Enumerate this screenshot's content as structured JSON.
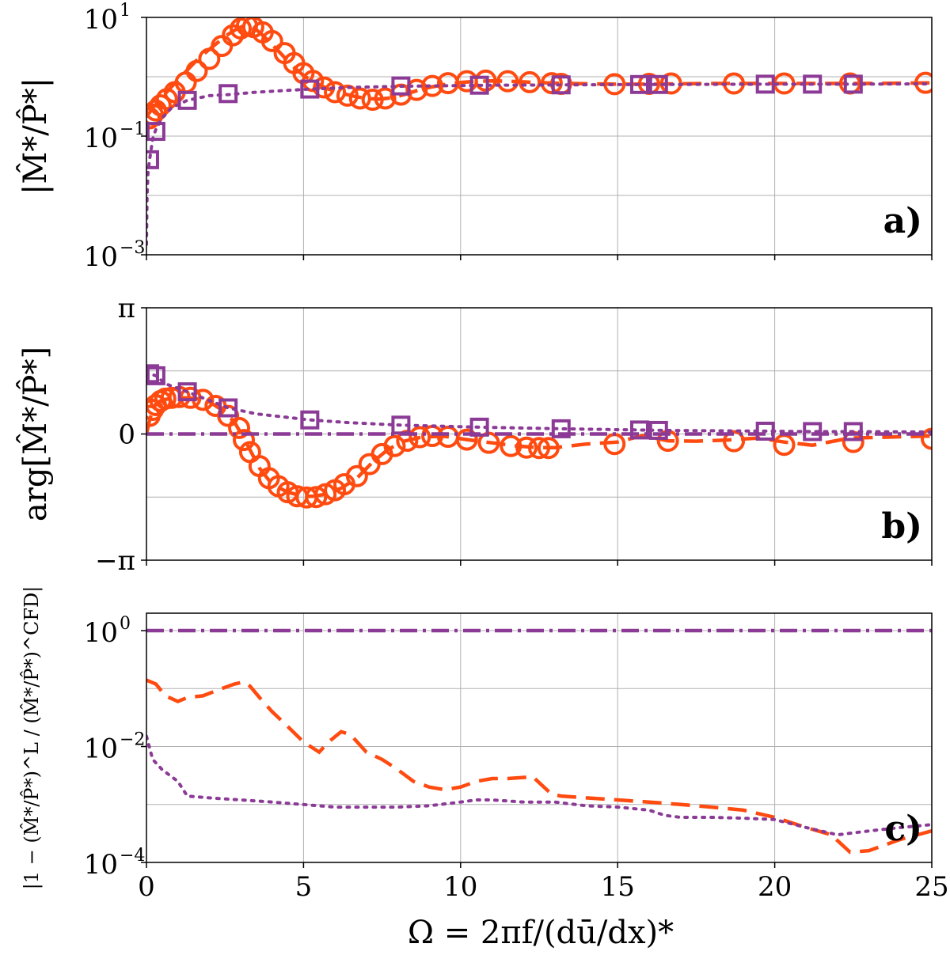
{
  "colors": {
    "orange": "#ff4a10",
    "purple": "#8b3a96"
  },
  "xaxis": {
    "label": "Ω = 2πf/(dū/dx)*",
    "ticks": [
      0,
      5,
      10,
      15,
      20,
      25
    ],
    "tick_labels": [
      "0",
      "5",
      "10",
      "15",
      "20",
      "25"
    ],
    "lim": [
      0,
      25
    ]
  },
  "chart_data": [
    {
      "type": "line",
      "panel": "a)",
      "ylabel": "|M̂*/P̂*|",
      "yscale": "log",
      "ylim": [
        0.001,
        10
      ],
      "ytick_labels": [
        {
          "base": "10",
          "exp": "1"
        },
        {
          "base": "10",
          "exp": "−1"
        },
        {
          "base": "10",
          "exp": "−3"
        }
      ],
      "yticks": [
        10,
        0.1,
        0.001
      ],
      "series": [
        {
          "name": "orange-dashed-circles",
          "color": "orange",
          "dash": "long",
          "marker": "circle",
          "x": [
            0,
            0.1,
            0.2,
            0.3,
            0.4,
            0.5,
            0.6,
            0.8,
            1.0,
            1.3,
            1.6,
            2.0,
            2.3,
            2.6,
            2.9,
            3.1,
            3.3,
            3.5,
            3.7,
            4.0,
            4.3,
            4.6,
            5.0,
            5.4,
            5.8,
            6.2,
            6.6,
            7.0,
            7.4,
            7.8,
            8.2,
            8.6,
            9.0,
            9.5,
            10.0,
            10.5,
            11.0,
            11.5,
            12.0,
            12.5,
            13.0,
            14.0,
            15.0,
            16.0,
            17.0,
            18.0,
            19.0,
            20.0,
            21.0,
            22.0,
            23.0,
            24.0,
            25.0
          ],
          "y": [
            0.22,
            0.25,
            0.3,
            0.34,
            0.39,
            0.45,
            0.52,
            0.68,
            0.88,
            1.3,
            1.9,
            2.9,
            3.9,
            5.2,
            6.5,
            7.2,
            7.0,
            6.2,
            5.0,
            3.5,
            2.4,
            1.6,
            1.05,
            0.78,
            0.62,
            0.53,
            0.47,
            0.43,
            0.42,
            0.44,
            0.5,
            0.58,
            0.66,
            0.74,
            0.8,
            0.84,
            0.85,
            0.84,
            0.82,
            0.8,
            0.78,
            0.76,
            0.75,
            0.75,
            0.76,
            0.77,
            0.77,
            0.77,
            0.77,
            0.77,
            0.77,
            0.78,
            0.79
          ],
          "marker_x": [
            0.1,
            0.2,
            0.3,
            0.45,
            0.65,
            0.9,
            1.25,
            1.6,
            2.0,
            2.4,
            2.75,
            3.0,
            3.2,
            3.4,
            3.7,
            4.0,
            4.4,
            4.7,
            5.0,
            5.3,
            5.65,
            6.0,
            6.4,
            6.8,
            7.2,
            7.6,
            8.1,
            8.6,
            9.1,
            9.6,
            10.2,
            10.8,
            11.5,
            12.2,
            12.9,
            13.2,
            14.9,
            16.0,
            16.7,
            18.7,
            20.3,
            22.4,
            24.8
          ],
          "marker_y": [
            0.2,
            0.23,
            0.27,
            0.33,
            0.42,
            0.55,
            0.8,
            1.25,
            2.0,
            3.3,
            5.0,
            6.5,
            7.3,
            6.9,
            5.6,
            4.0,
            2.5,
            1.7,
            1.15,
            0.85,
            0.66,
            0.55,
            0.48,
            0.43,
            0.41,
            0.43,
            0.5,
            0.6,
            0.7,
            0.78,
            0.84,
            0.86,
            0.84,
            0.81,
            0.78,
            0.76,
            0.75,
            0.76,
            0.77,
            0.77,
            0.77,
            0.77,
            0.79
          ]
        },
        {
          "name": "purple-dotted-squares",
          "color": "purple",
          "dash": "dotted",
          "marker": "square",
          "x": [
            0,
            0.02,
            0.05,
            0.1,
            0.2,
            0.3,
            0.5,
            0.8,
            1.3,
            2.0,
            2.6,
            3.5,
            5.2,
            6.5,
            8.0,
            10.0,
            11.0,
            13.2,
            15.7,
            16.3,
            19.7,
            21.2,
            22.5,
            25.0
          ],
          "y": [
            0.0015,
            0.01,
            0.025,
            0.04,
            0.09,
            0.13,
            0.2,
            0.3,
            0.4,
            0.48,
            0.5,
            0.55,
            0.62,
            0.66,
            0.69,
            0.71,
            0.72,
            0.73,
            0.74,
            0.74,
            0.75,
            0.75,
            0.75,
            0.76
          ],
          "marker_x": [
            0.1,
            0.3,
            1.3,
            2.6,
            5.2,
            8.1,
            10.6,
            13.2,
            15.7,
            16.3,
            19.7,
            21.2,
            22.5
          ],
          "marker_y": [
            0.04,
            0.12,
            0.4,
            0.52,
            0.62,
            0.7,
            0.72,
            0.73,
            0.74,
            0.74,
            0.75,
            0.75,
            0.75
          ]
        }
      ]
    },
    {
      "type": "line",
      "panel": "b)",
      "ylabel": "arg[M̂*/P̂*]",
      "ylim": [
        -3.14159,
        3.14159
      ],
      "ytick_labels": [
        "π",
        "0",
        "−π"
      ],
      "yticks": [
        3.14159,
        0,
        -3.14159
      ],
      "grid_y": [
        3.14159,
        1.5708,
        0,
        -1.5708,
        -3.14159
      ],
      "series": [
        {
          "name": "orange-dashed-circles",
          "color": "orange",
          "dash": "long",
          "marker": "circle",
          "x": [
            0,
            0.1,
            0.2,
            0.3,
            0.5,
            0.8,
            1.2,
            1.6,
            2.0,
            2.4,
            2.8,
            3.2,
            3.6,
            4.0,
            4.5,
            5.0,
            5.3,
            5.7,
            6.2,
            6.7,
            7.2,
            7.7,
            8.2,
            8.8,
            9.5,
            10.2,
            11.0,
            11.8,
            12.5,
            13.0,
            14.0,
            15.0,
            15.8,
            16.6,
            17.5,
            18.5,
            19.5,
            20.3,
            21.2,
            22.4,
            23.5,
            25.0
          ],
          "y": [
            0.0,
            0.35,
            0.6,
            0.75,
            0.85,
            0.88,
            0.9,
            0.88,
            0.8,
            0.6,
            0.3,
            -0.25,
            -0.85,
            -1.25,
            -1.45,
            -1.55,
            -1.55,
            -1.5,
            -1.35,
            -1.1,
            -0.7,
            -0.38,
            -0.18,
            -0.07,
            -0.06,
            -0.14,
            -0.22,
            -0.3,
            -0.34,
            -0.34,
            -0.25,
            -0.2,
            -0.04,
            -0.17,
            -0.18,
            -0.15,
            -0.1,
            -0.2,
            -0.28,
            -0.1,
            -0.08,
            -0.05
          ],
          "marker_x": [
            0.1,
            0.2,
            0.3,
            0.45,
            0.6,
            0.8,
            1.05,
            1.4,
            1.8,
            2.2,
            2.6,
            2.95,
            3.1,
            3.3,
            3.6,
            3.9,
            4.2,
            4.5,
            4.8,
            5.1,
            5.4,
            5.7,
            6.0,
            6.3,
            6.7,
            7.1,
            7.5,
            7.9,
            8.3,
            8.7,
            9.1,
            9.6,
            10.2,
            10.9,
            11.6,
            12.1,
            12.5,
            12.8,
            14.9,
            16.6,
            18.7,
            20.3,
            22.5,
            25.0
          ],
          "marker_y": [
            0.45,
            0.6,
            0.72,
            0.82,
            0.88,
            0.9,
            0.92,
            0.9,
            0.85,
            0.7,
            0.45,
            0.15,
            -0.15,
            -0.45,
            -0.8,
            -1.1,
            -1.3,
            -1.45,
            -1.55,
            -1.58,
            -1.57,
            -1.5,
            -1.4,
            -1.25,
            -1.05,
            -0.75,
            -0.5,
            -0.3,
            -0.17,
            -0.08,
            -0.05,
            -0.07,
            -0.14,
            -0.22,
            -0.3,
            -0.34,
            -0.35,
            -0.35,
            -0.25,
            -0.17,
            -0.18,
            -0.27,
            -0.2,
            -0.12
          ]
        },
        {
          "name": "purple-dotted-squares",
          "color": "purple",
          "dash": "dotted",
          "marker": "square",
          "x": [
            0,
            0.05,
            0.1,
            0.3,
            0.6,
            1.3,
            2.6,
            3.5,
            5.2,
            6.5,
            8.1,
            10.6,
            13.2,
            15.7,
            16.3,
            19.7,
            21.2,
            22.5,
            25.0
          ],
          "y": [
            1.45,
            1.5,
            1.5,
            1.45,
            1.25,
            1.05,
            0.65,
            0.5,
            0.35,
            0.28,
            0.22,
            0.17,
            0.13,
            0.1,
            0.09,
            0.07,
            0.06,
            0.06,
            0.05
          ],
          "marker_x": [
            0.1,
            0.3,
            1.3,
            2.6,
            5.2,
            8.1,
            10.6,
            13.2,
            15.7,
            16.3,
            19.7,
            21.2,
            22.5
          ],
          "marker_y": [
            1.5,
            1.45,
            1.05,
            0.65,
            0.35,
            0.22,
            0.17,
            0.13,
            0.1,
            0.09,
            0.07,
            0.06,
            0.06
          ]
        },
        {
          "name": "reference-dashdot",
          "color": "purple",
          "dash": "dashdot",
          "marker": "none",
          "x": [
            0,
            25
          ],
          "y": [
            0,
            0
          ]
        }
      ]
    },
    {
      "type": "line",
      "panel": "c)",
      "ylabel": "|1 − (M̂*/P̂*)^L / (M̂*/P̂*)^CFD|",
      "yscale": "log",
      "ylim": [
        0.0001,
        2
      ],
      "ytick_labels": [
        {
          "base": "10",
          "exp": "0"
        },
        {
          "base": "10",
          "exp": "−2"
        },
        {
          "base": "10",
          "exp": "−4"
        }
      ],
      "yticks": [
        1,
        0.01,
        0.0001
      ],
      "series": [
        {
          "name": "orange-dashed",
          "color": "orange",
          "dash": "long",
          "marker": "none",
          "x": [
            0,
            0.3,
            0.6,
            1.0,
            1.3,
            1.8,
            2.4,
            2.8,
            3.1,
            3.3,
            3.6,
            4.0,
            4.5,
            5.0,
            5.5,
            5.8,
            6.2,
            6.5,
            7.0,
            7.5,
            8.0,
            8.5,
            9.0,
            9.5,
            10.0,
            10.5,
            11.0,
            11.5,
            12.3,
            12.9,
            13.2,
            14.0,
            15.0,
            16.0,
            17.0,
            18.0,
            19.0,
            20.0,
            21.0,
            21.8,
            22.4,
            23.0,
            23.5,
            24.0,
            25.0
          ],
          "y": [
            0.14,
            0.12,
            0.075,
            0.06,
            0.07,
            0.075,
            0.1,
            0.12,
            0.13,
            0.11,
            0.07,
            0.04,
            0.022,
            0.012,
            0.008,
            0.012,
            0.018,
            0.016,
            0.008,
            0.006,
            0.004,
            0.0025,
            0.002,
            0.0018,
            0.002,
            0.0025,
            0.0028,
            0.0028,
            0.003,
            0.0015,
            0.0014,
            0.0013,
            0.0012,
            0.0011,
            0.001,
            0.0009,
            0.0008,
            0.0006,
            0.0004,
            0.0003,
            0.00015,
            0.00016,
            0.0002,
            0.00025,
            0.00035
          ]
        },
        {
          "name": "purple-dotted",
          "color": "purple",
          "dash": "dotted",
          "marker": "none",
          "x": [
            0,
            0.2,
            0.5,
            1.0,
            1.3,
            2.0,
            3.0,
            4.0,
            5.0,
            6.0,
            7.0,
            8.0,
            9.0,
            10.0,
            10.5,
            11.0,
            12.0,
            13.0,
            14.0,
            15.0,
            16.0,
            16.5,
            17.0,
            18.0,
            19.0,
            20.0,
            21.0,
            22.0,
            23.0,
            24.0,
            25.0
          ],
          "y": [
            0.015,
            0.006,
            0.004,
            0.0025,
            0.0014,
            0.0013,
            0.0012,
            0.0011,
            0.001,
            0.0009,
            0.0009,
            0.0009,
            0.00095,
            0.0011,
            0.0012,
            0.0012,
            0.0011,
            0.0011,
            0.00095,
            0.0009,
            0.0008,
            0.00065,
            0.0006,
            0.0006,
            0.00058,
            0.00055,
            0.0004,
            0.0003,
            0.00035,
            0.0004,
            0.00045
          ]
        },
        {
          "name": "reference-dashdot",
          "color": "purple",
          "dash": "dashdot",
          "marker": "none",
          "x": [
            0,
            25
          ],
          "y": [
            1,
            1
          ]
        }
      ]
    }
  ]
}
